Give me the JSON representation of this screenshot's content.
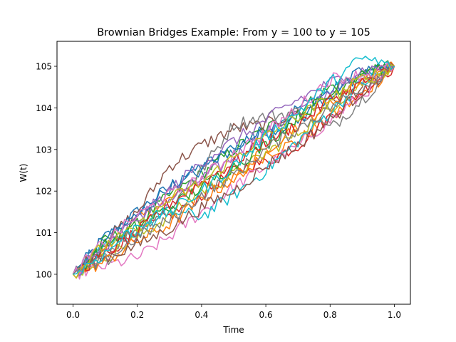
{
  "chart_data": {
    "type": "line",
    "title": "Brownian Bridges Example: From y = 100 to y = 105",
    "xlabel": "Time",
    "ylabel": "W(t)",
    "xlim": [
      -0.05,
      1.05
    ],
    "ylim": [
      99.28,
      105.6
    ],
    "xticks": [
      0.0,
      0.2,
      0.4,
      0.6,
      0.8,
      1.0
    ],
    "xtick_labels": [
      "0.0",
      "0.2",
      "0.4",
      "0.6",
      "0.8",
      "1.0"
    ],
    "yticks": [
      100,
      101,
      102,
      103,
      104,
      105
    ],
    "ytick_labels": [
      "100",
      "101",
      "102",
      "103",
      "104",
      "105"
    ],
    "grid": false,
    "legend": "none",
    "start": {
      "x": 0.0,
      "y": 100
    },
    "end": {
      "x": 1.0,
      "y": 105
    },
    "x": [
      0.0,
      0.1,
      0.2,
      0.3,
      0.4,
      0.5,
      0.6,
      0.7,
      0.8,
      0.9,
      1.0
    ],
    "colors": [
      "#1f77b4",
      "#ff7f0e",
      "#2ca02c",
      "#d62728",
      "#9467bd",
      "#8c564b",
      "#e377c2",
      "#7f7f7f",
      "#bcbd22",
      "#17becf"
    ],
    "series": [
      {
        "values": [
          100,
          100.9,
          101.5,
          102.1,
          102.6,
          103.0,
          103.5,
          104.0,
          104.4,
          104.8,
          105
        ]
      },
      {
        "values": [
          100,
          100.6,
          101.3,
          101.8,
          102.2,
          102.2,
          102.9,
          103.2,
          103.8,
          104.3,
          105
        ]
      },
      {
        "values": [
          100,
          100.8,
          101.2,
          101.9,
          102.4,
          103.0,
          103.5,
          103.9,
          104.5,
          104.8,
          105
        ]
      },
      {
        "values": [
          100,
          100.5,
          101.0,
          101.4,
          101.9,
          102.5,
          102.7,
          103.1,
          103.8,
          104.4,
          105
        ]
      },
      {
        "values": [
          100,
          100.7,
          101.4,
          101.8,
          102.3,
          102.8,
          103.4,
          103.9,
          104.4,
          104.7,
          105
        ]
      },
      {
        "values": [
          100,
          100.8,
          101.5,
          102.6,
          103.1,
          103.5,
          103.6,
          103.9,
          104.1,
          104.5,
          105
        ]
      },
      {
        "values": [
          100,
          100.2,
          100.4,
          100.9,
          101.5,
          102.1,
          102.6,
          103.1,
          103.7,
          104.3,
          105
        ]
      },
      {
        "values": [
          100,
          100.5,
          101.1,
          101.6,
          102.5,
          103.6,
          103.8,
          103.9,
          103.5,
          104.2,
          105
        ]
      },
      {
        "values": [
          100,
          100.4,
          100.9,
          101.4,
          102.0,
          102.4,
          102.9,
          103.4,
          104.0,
          104.6,
          105
        ]
      },
      {
        "values": [
          100,
          100.6,
          101.0,
          101.5,
          101.4,
          101.9,
          102.5,
          103.2,
          103.9,
          104.6,
          105
        ]
      },
      {
        "values": [
          100,
          100.9,
          101.4,
          102.1,
          102.5,
          103.1,
          103.4,
          103.7,
          104.3,
          104.9,
          105
        ]
      },
      {
        "values": [
          100,
          100.3,
          100.8,
          101.2,
          101.8,
          102.3,
          103.0,
          103.6,
          104.1,
          104.7,
          105
        ]
      },
      {
        "values": [
          100,
          100.7,
          101.2,
          101.6,
          102.1,
          102.6,
          103.1,
          103.8,
          104.3,
          104.9,
          105
        ]
      },
      {
        "values": [
          100,
          100.5,
          101.0,
          101.7,
          102.2,
          102.7,
          103.2,
          103.6,
          104.2,
          104.6,
          105
        ]
      },
      {
        "values": [
          100,
          100.6,
          101.3,
          102.0,
          102.7,
          103.2,
          103.7,
          104.2,
          104.6,
          104.9,
          105
        ]
      },
      {
        "values": [
          100,
          100.4,
          100.7,
          101.1,
          101.6,
          102.0,
          102.6,
          103.1,
          103.7,
          104.4,
          105
        ]
      },
      {
        "values": [
          100,
          100.8,
          101.4,
          101.9,
          102.3,
          102.9,
          103.4,
          104.0,
          104.7,
          104.8,
          105
        ]
      },
      {
        "values": [
          100,
          100.3,
          100.9,
          101.3,
          101.9,
          102.4,
          103.0,
          103.5,
          104.0,
          104.5,
          105
        ]
      },
      {
        "values": [
          100,
          100.7,
          101.1,
          101.8,
          102.2,
          102.8,
          103.3,
          103.8,
          104.2,
          104.7,
          105
        ]
      },
      {
        "values": [
          100,
          100.5,
          101.2,
          101.5,
          102.0,
          102.6,
          103.3,
          103.9,
          104.6,
          105.2,
          105
        ]
      }
    ]
  }
}
